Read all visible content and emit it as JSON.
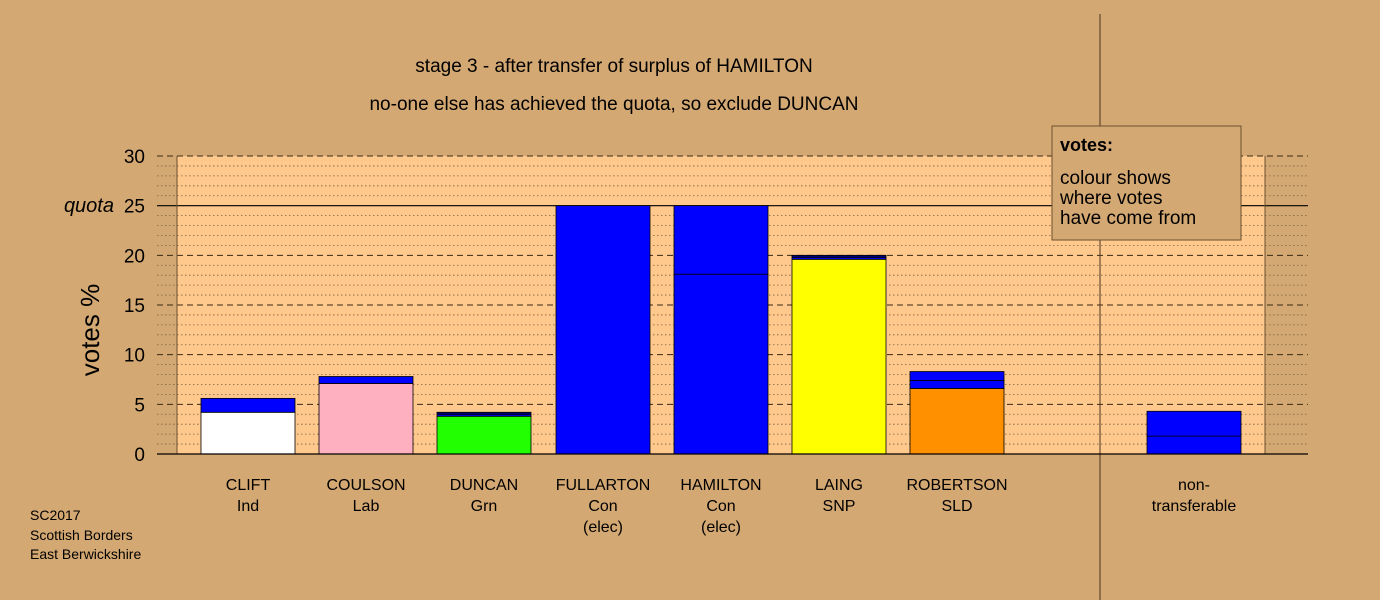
{
  "chart_data": {
    "type": "bar",
    "title": "stage 3 - after transfer of surplus of HAMILTON",
    "subtitle": "no-one else has achieved the quota, so exclude DUNCAN",
    "ylabel": "votes %",
    "ylim": [
      0,
      30
    ],
    "yticks": [
      0,
      5,
      10,
      15,
      20,
      25,
      30
    ],
    "quota": {
      "label": "quota",
      "value": 25
    },
    "grid": true,
    "categories": [
      {
        "lines": [
          "CLIFT",
          "Ind"
        ]
      },
      {
        "lines": [
          "COULSON",
          "Lab"
        ]
      },
      {
        "lines": [
          "DUNCAN",
          "Grn"
        ]
      },
      {
        "lines": [
          "FULLARTON",
          "Con",
          "(elec)"
        ]
      },
      {
        "lines": [
          "HAMILTON",
          "Con",
          "(elec)"
        ]
      },
      {
        "lines": [
          "LAING",
          "SNP"
        ]
      },
      {
        "lines": [
          "ROBERTSON",
          "SLD"
        ]
      },
      {
        "lines": [
          "non-",
          "transferable"
        ]
      }
    ],
    "bars": [
      {
        "segments": [
          {
            "value": 4.2,
            "color": "#ffffff"
          },
          {
            "value": 1.4,
            "color": "#0000ff"
          }
        ]
      },
      {
        "segments": [
          {
            "value": 7.1,
            "color": "#ffb0c0"
          },
          {
            "value": 0.7,
            "color": "#0000ff"
          }
        ]
      },
      {
        "segments": [
          {
            "value": 3.8,
            "color": "#22ff00"
          },
          {
            "value": 0.2,
            "color": "#0000ff"
          },
          {
            "value": 0.2,
            "color": "#000080"
          }
        ]
      },
      {
        "segments": [
          {
            "value": 25.0,
            "color": "#0000ff"
          }
        ]
      },
      {
        "segments": [
          {
            "value": 18.1,
            "color": "#0000ff"
          },
          {
            "value": 6.9,
            "color": "#0000ff"
          }
        ]
      },
      {
        "segments": [
          {
            "value": 19.6,
            "color": "#ffff00"
          },
          {
            "value": 0.2,
            "color": "#0000ff"
          },
          {
            "value": 0.2,
            "color": "#000080"
          }
        ]
      },
      {
        "segments": [
          {
            "value": 6.6,
            "color": "#ff9000"
          },
          {
            "value": 0.8,
            "color": "#0000ff"
          },
          {
            "value": 0.9,
            "color": "#0000ff"
          }
        ]
      },
      {
        "segments": [
          {
            "value": 1.8,
            "color": "#0000ff"
          },
          {
            "value": 2.5,
            "color": "#0000ff"
          }
        ]
      }
    ],
    "legend": {
      "title": "votes:",
      "lines": [
        "colour shows",
        "where votes",
        "have come from"
      ]
    },
    "plot_background": "#ffc88c",
    "page_background": "#d4a872"
  },
  "footnote": [
    "SC2017",
    "Scottish Borders",
    "East Berwickshire"
  ]
}
